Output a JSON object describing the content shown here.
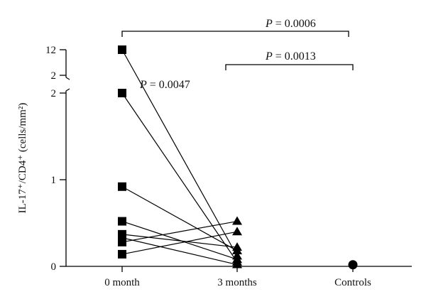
{
  "chart_data": {
    "type": "scatter",
    "ylabel": "IL-17⁺/CD4⁺ (cells/mm²)",
    "categories": [
      "0 month",
      "3 months",
      "Controls"
    ],
    "y_ticks": [
      "0",
      "1",
      "2",
      "2",
      "12"
    ],
    "y_axis_break": true,
    "ylim": [
      0,
      2
    ],
    "upper_segment_values": [
      2,
      12
    ],
    "series": [
      {
        "marker": "square",
        "group": "0 month",
        "values": [
          12,
          2,
          0.92,
          0.52,
          0.37,
          0.33,
          0.28,
          0.14
        ]
      },
      {
        "marker": "triangle",
        "group": "3 months",
        "values": [
          0.52,
          0.4,
          0.22,
          0.18,
          0.12,
          0.08,
          0.05,
          0.02
        ]
      },
      {
        "marker": "circle",
        "group": "Controls",
        "values": [
          0.01
        ]
      }
    ],
    "pairs": [
      [
        12,
        0.12
      ],
      [
        2,
        0.05
      ],
      [
        0.92,
        0.18
      ],
      [
        0.52,
        0.08
      ],
      [
        0.37,
        0.22
      ],
      [
        0.33,
        0.02
      ],
      [
        0.28,
        0.52
      ],
      [
        0.14,
        0.4
      ]
    ],
    "annotations": [
      {
        "label": "P",
        "text": " = 0.0006",
        "between": [
          "0 month",
          "Controls"
        ]
      },
      {
        "label": "P",
        "text": " = 0.0013",
        "between": [
          "3 months",
          "Controls"
        ]
      },
      {
        "label": "P",
        "text": " = 0.0047",
        "between": [
          "0 month",
          "3 months"
        ]
      }
    ],
    "colors": {
      "marker": "#000000",
      "line": "#000000"
    }
  }
}
